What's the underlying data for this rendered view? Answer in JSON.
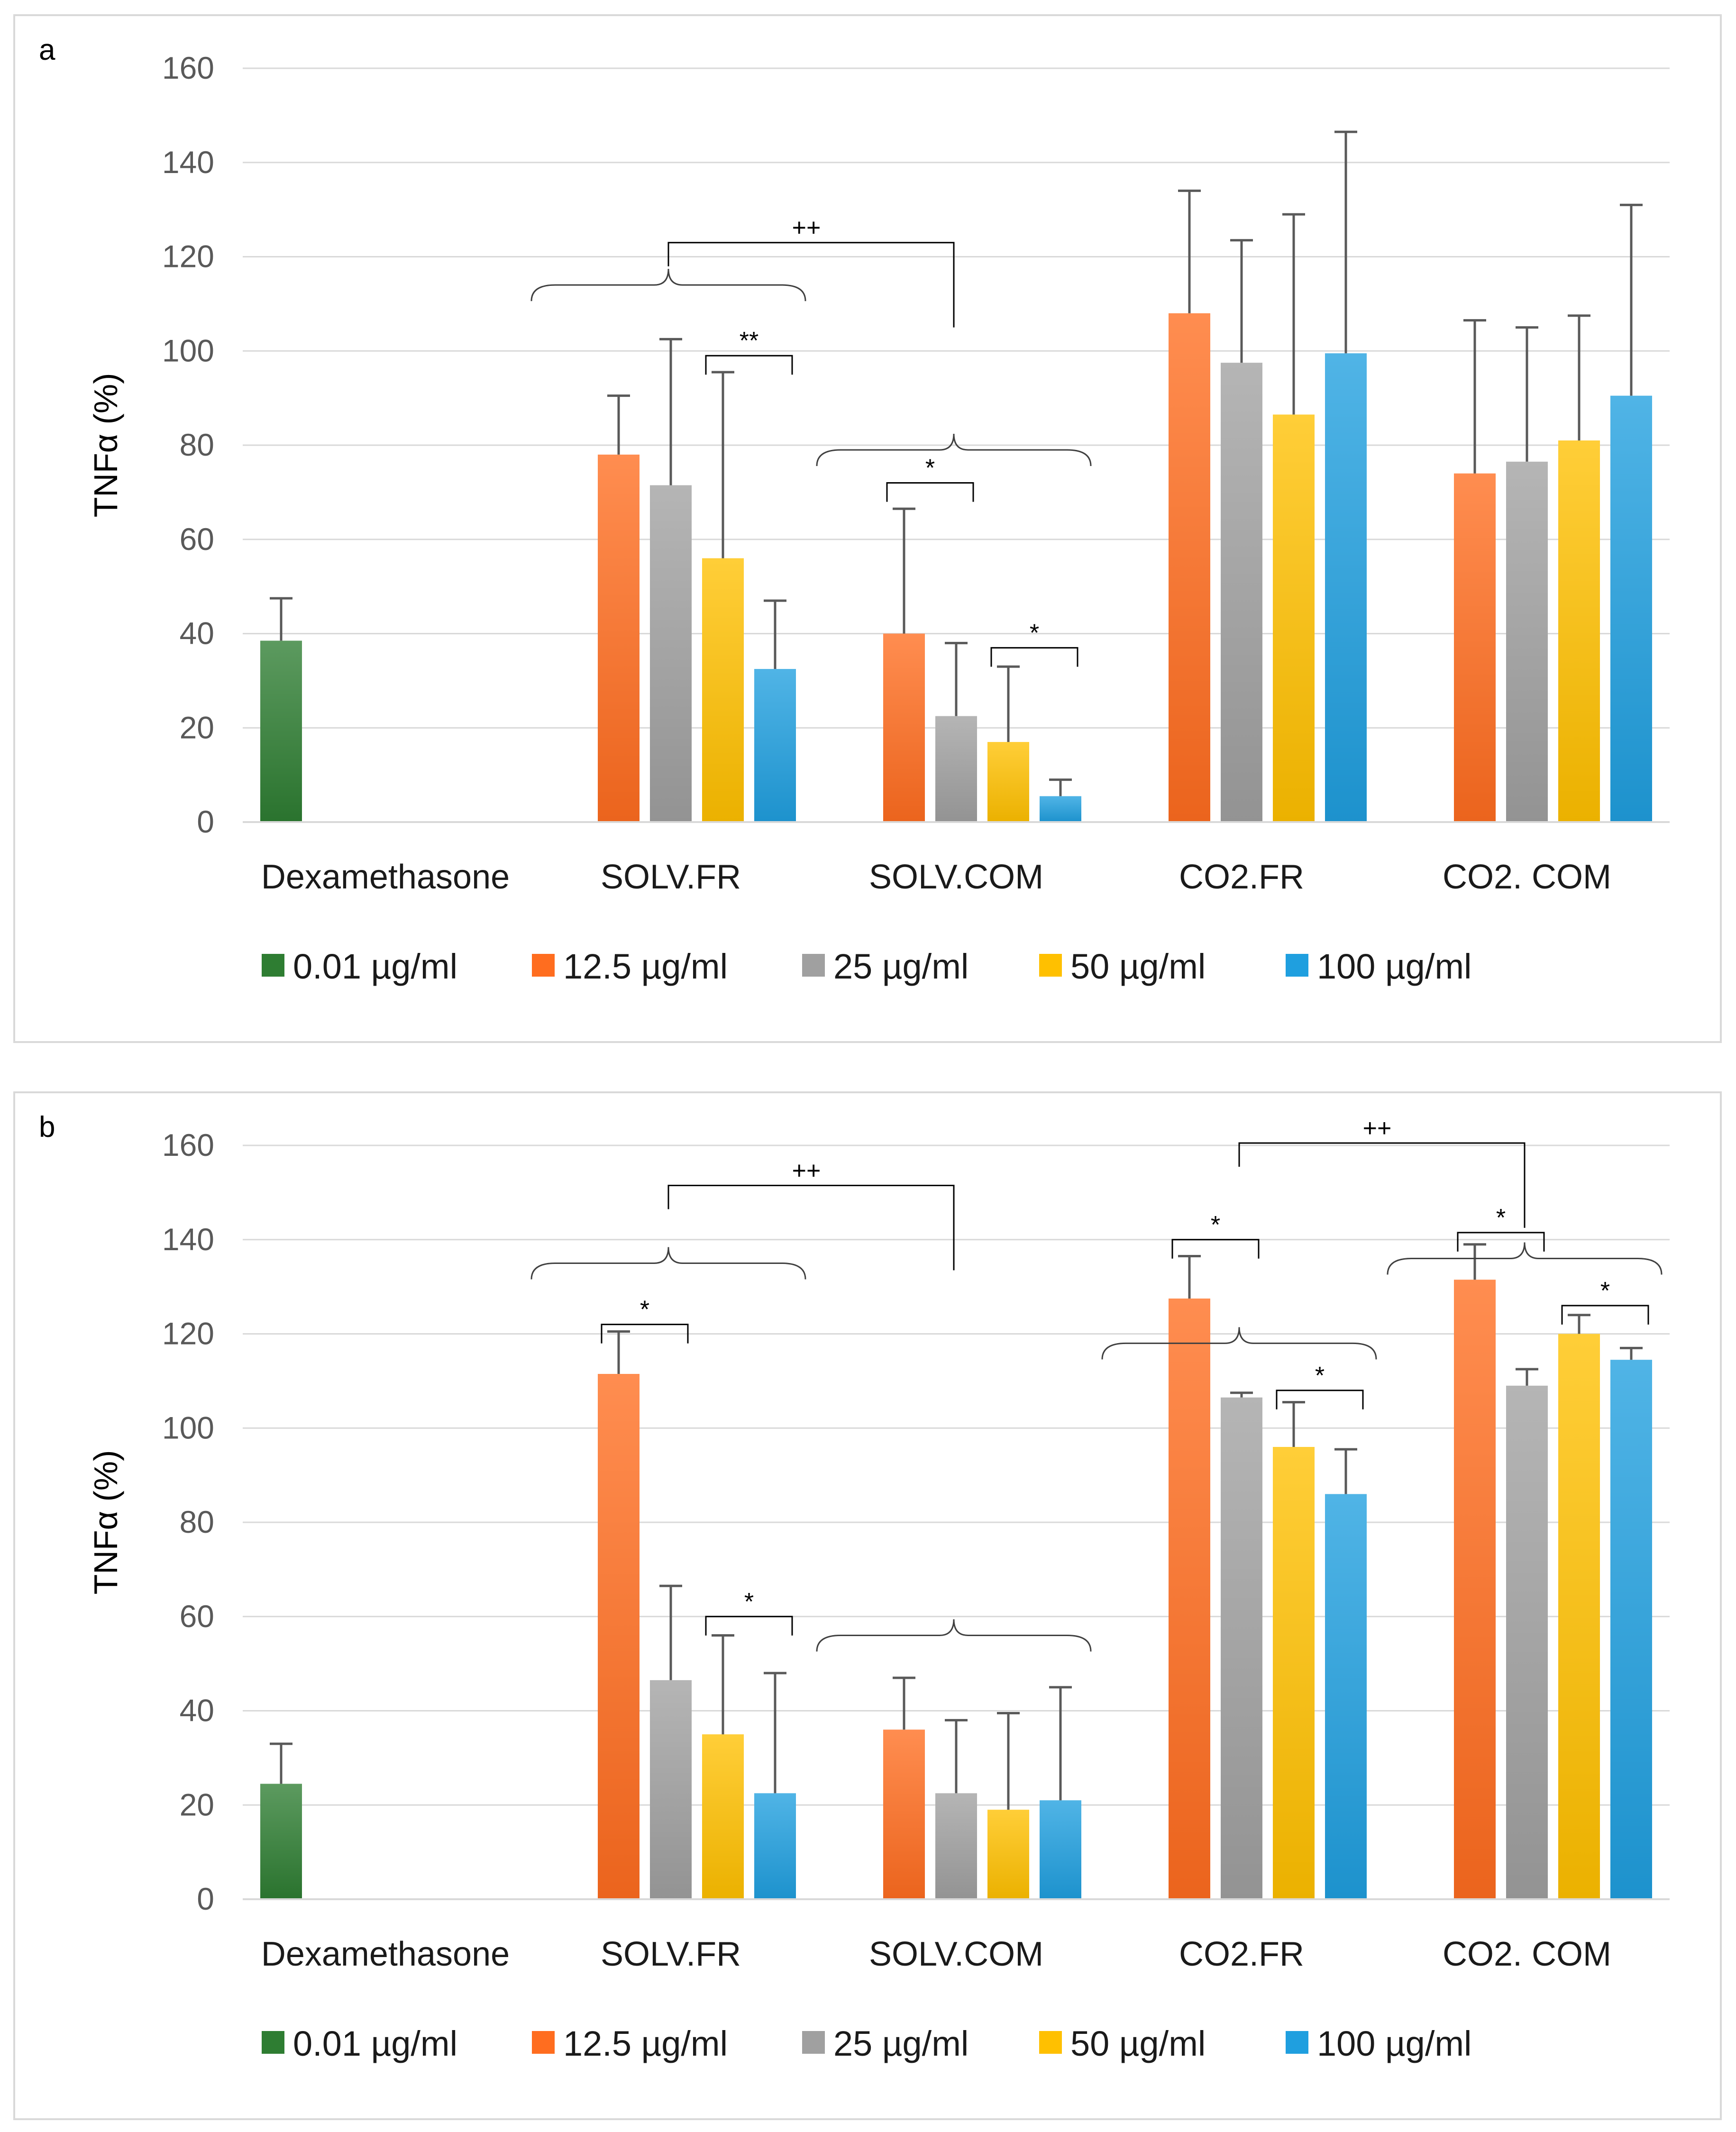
{
  "chart_data": [
    {
      "panel": "a",
      "type": "bar",
      "title": "",
      "xlabel": "",
      "ylabel": "TNFα (%)",
      "ylim": [
        0,
        160
      ],
      "yticks": [
        0,
        20,
        40,
        60,
        80,
        100,
        120,
        140,
        160
      ],
      "grid": true,
      "legend_position": "bottom",
      "categories": [
        "Dexamethasone",
        "SOLV.FR",
        "SOLV.COM",
        "CO2.FR",
        "CO2. COM"
      ],
      "series": [
        {
          "name": "0.01 µg/ml",
          "color": "#2e7d32",
          "values": [
            38.5,
            null,
            null,
            null,
            null
          ],
          "errors": [
            9,
            null,
            null,
            null,
            null
          ]
        },
        {
          "name": "12.5 µg/ml",
          "color": "#ff6d1f",
          "values": [
            null,
            78,
            40,
            108,
            74
          ],
          "errors": [
            null,
            12.5,
            26.5,
            26,
            32.5
          ]
        },
        {
          "name": "25 µg/ml",
          "color": "#a0a0a0",
          "values": [
            null,
            71.5,
            22.5,
            97.5,
            76.5
          ],
          "errors": [
            null,
            31,
            15.5,
            26,
            28.5
          ]
        },
        {
          "name": "50 µg/ml",
          "color": "#ffc000",
          "values": [
            null,
            56,
            17,
            86.5,
            81
          ],
          "errors": [
            null,
            39.5,
            16,
            42.5,
            26.5
          ]
        },
        {
          "name": "100 µg/ml",
          "color": "#1f9fdf",
          "values": [
            null,
            32.5,
            5.5,
            99.5,
            90.5
          ],
          "errors": [
            null,
            14.5,
            3.5,
            47,
            40.5
          ]
        }
      ],
      "annotations": [
        {
          "kind": "bracket",
          "group": "SOLV.FR",
          "from": "50 µg/ml",
          "to": "100 µg/ml",
          "level": 99,
          "label": "**"
        },
        {
          "kind": "bracket",
          "group": "SOLV.COM",
          "from": "12.5 µg/ml",
          "to": "25 µg/ml",
          "level": 72,
          "label": "*"
        },
        {
          "kind": "bracket",
          "group": "SOLV.COM",
          "from": "50 µg/ml",
          "to": "100 µg/ml",
          "level": 37,
          "label": "*"
        },
        {
          "kind": "brace",
          "group": "SOLV.FR",
          "level": 114
        },
        {
          "kind": "brace",
          "group": "SOLV.COM",
          "level": 79
        },
        {
          "kind": "between",
          "from_group": "SOLV.FR",
          "to_group": "SOLV.COM",
          "level": 123,
          "label": "++"
        }
      ]
    },
    {
      "panel": "b",
      "type": "bar",
      "title": "",
      "xlabel": "",
      "ylabel": "TNFα (%)",
      "ylim": [
        0,
        160
      ],
      "yticks": [
        0,
        20,
        40,
        60,
        80,
        100,
        120,
        140,
        160
      ],
      "grid": true,
      "legend_position": "bottom",
      "categories": [
        "Dexamethasone",
        "SOLV.FR",
        "SOLV.COM",
        "CO2.FR",
        "CO2. COM"
      ],
      "series": [
        {
          "name": "0.01 µg/ml",
          "color": "#2e7d32",
          "values": [
            24.5,
            null,
            null,
            null,
            null
          ],
          "errors": [
            8.5,
            null,
            null,
            null,
            null
          ]
        },
        {
          "name": "12.5 µg/ml",
          "color": "#ff6d1f",
          "values": [
            null,
            111.5,
            36,
            127.5,
            131.5
          ],
          "errors": [
            null,
            9,
            11,
            9,
            7.5
          ]
        },
        {
          "name": "25 µg/ml",
          "color": "#a0a0a0",
          "values": [
            null,
            46.5,
            22.5,
            106.5,
            109
          ],
          "errors": [
            null,
            20,
            15.5,
            1,
            3.5
          ]
        },
        {
          "name": "50 µg/ml",
          "color": "#ffc000",
          "values": [
            null,
            35,
            19,
            96,
            120
          ],
          "errors": [
            null,
            21,
            20.5,
            9.5,
            4
          ]
        },
        {
          "name": "100 µg/ml",
          "color": "#1f9fdf",
          "values": [
            null,
            22.5,
            21,
            86,
            114.5
          ],
          "errors": [
            null,
            25.5,
            24,
            9.5,
            2.5
          ]
        }
      ],
      "annotations": [
        {
          "kind": "bracket",
          "group": "SOLV.FR",
          "from": "12.5 µg/ml",
          "to": "25 µg/ml",
          "level": 122,
          "label": "*"
        },
        {
          "kind": "bracket",
          "group": "SOLV.FR",
          "from": "50 µg/ml",
          "to": "100 µg/ml",
          "level": 60,
          "label": "*"
        },
        {
          "kind": "bracket",
          "group": "CO2.FR",
          "from": "12.5 µg/ml",
          "to": "25 µg/ml",
          "level": 140,
          "label": "*"
        },
        {
          "kind": "bracket",
          "group": "CO2.FR",
          "from": "50 µg/ml",
          "to": "100 µg/ml",
          "level": 108,
          "label": "*"
        },
        {
          "kind": "bracket",
          "group": "CO2. COM",
          "from": "12.5 µg/ml",
          "to": "25 µg/ml",
          "level": 141.5,
          "label": "*"
        },
        {
          "kind": "bracket",
          "group": "CO2. COM",
          "from": "50 µg/ml",
          "to": "100 µg/ml",
          "level": 126,
          "label": "*"
        },
        {
          "kind": "brace",
          "group": "SOLV.FR",
          "level": 135
        },
        {
          "kind": "brace",
          "group": "SOLV.COM",
          "level": 56
        },
        {
          "kind": "brace",
          "group": "CO2.FR",
          "level": 118
        },
        {
          "kind": "brace",
          "group": "CO2. COM",
          "level": 136
        },
        {
          "kind": "between",
          "from_group": "SOLV.FR",
          "to_group": "SOLV.COM",
          "level": 151.5,
          "label": "++"
        },
        {
          "kind": "between",
          "from_group": "CO2.FR",
          "to_group": "CO2. COM",
          "level": 160.5,
          "label": "++"
        }
      ]
    }
  ]
}
